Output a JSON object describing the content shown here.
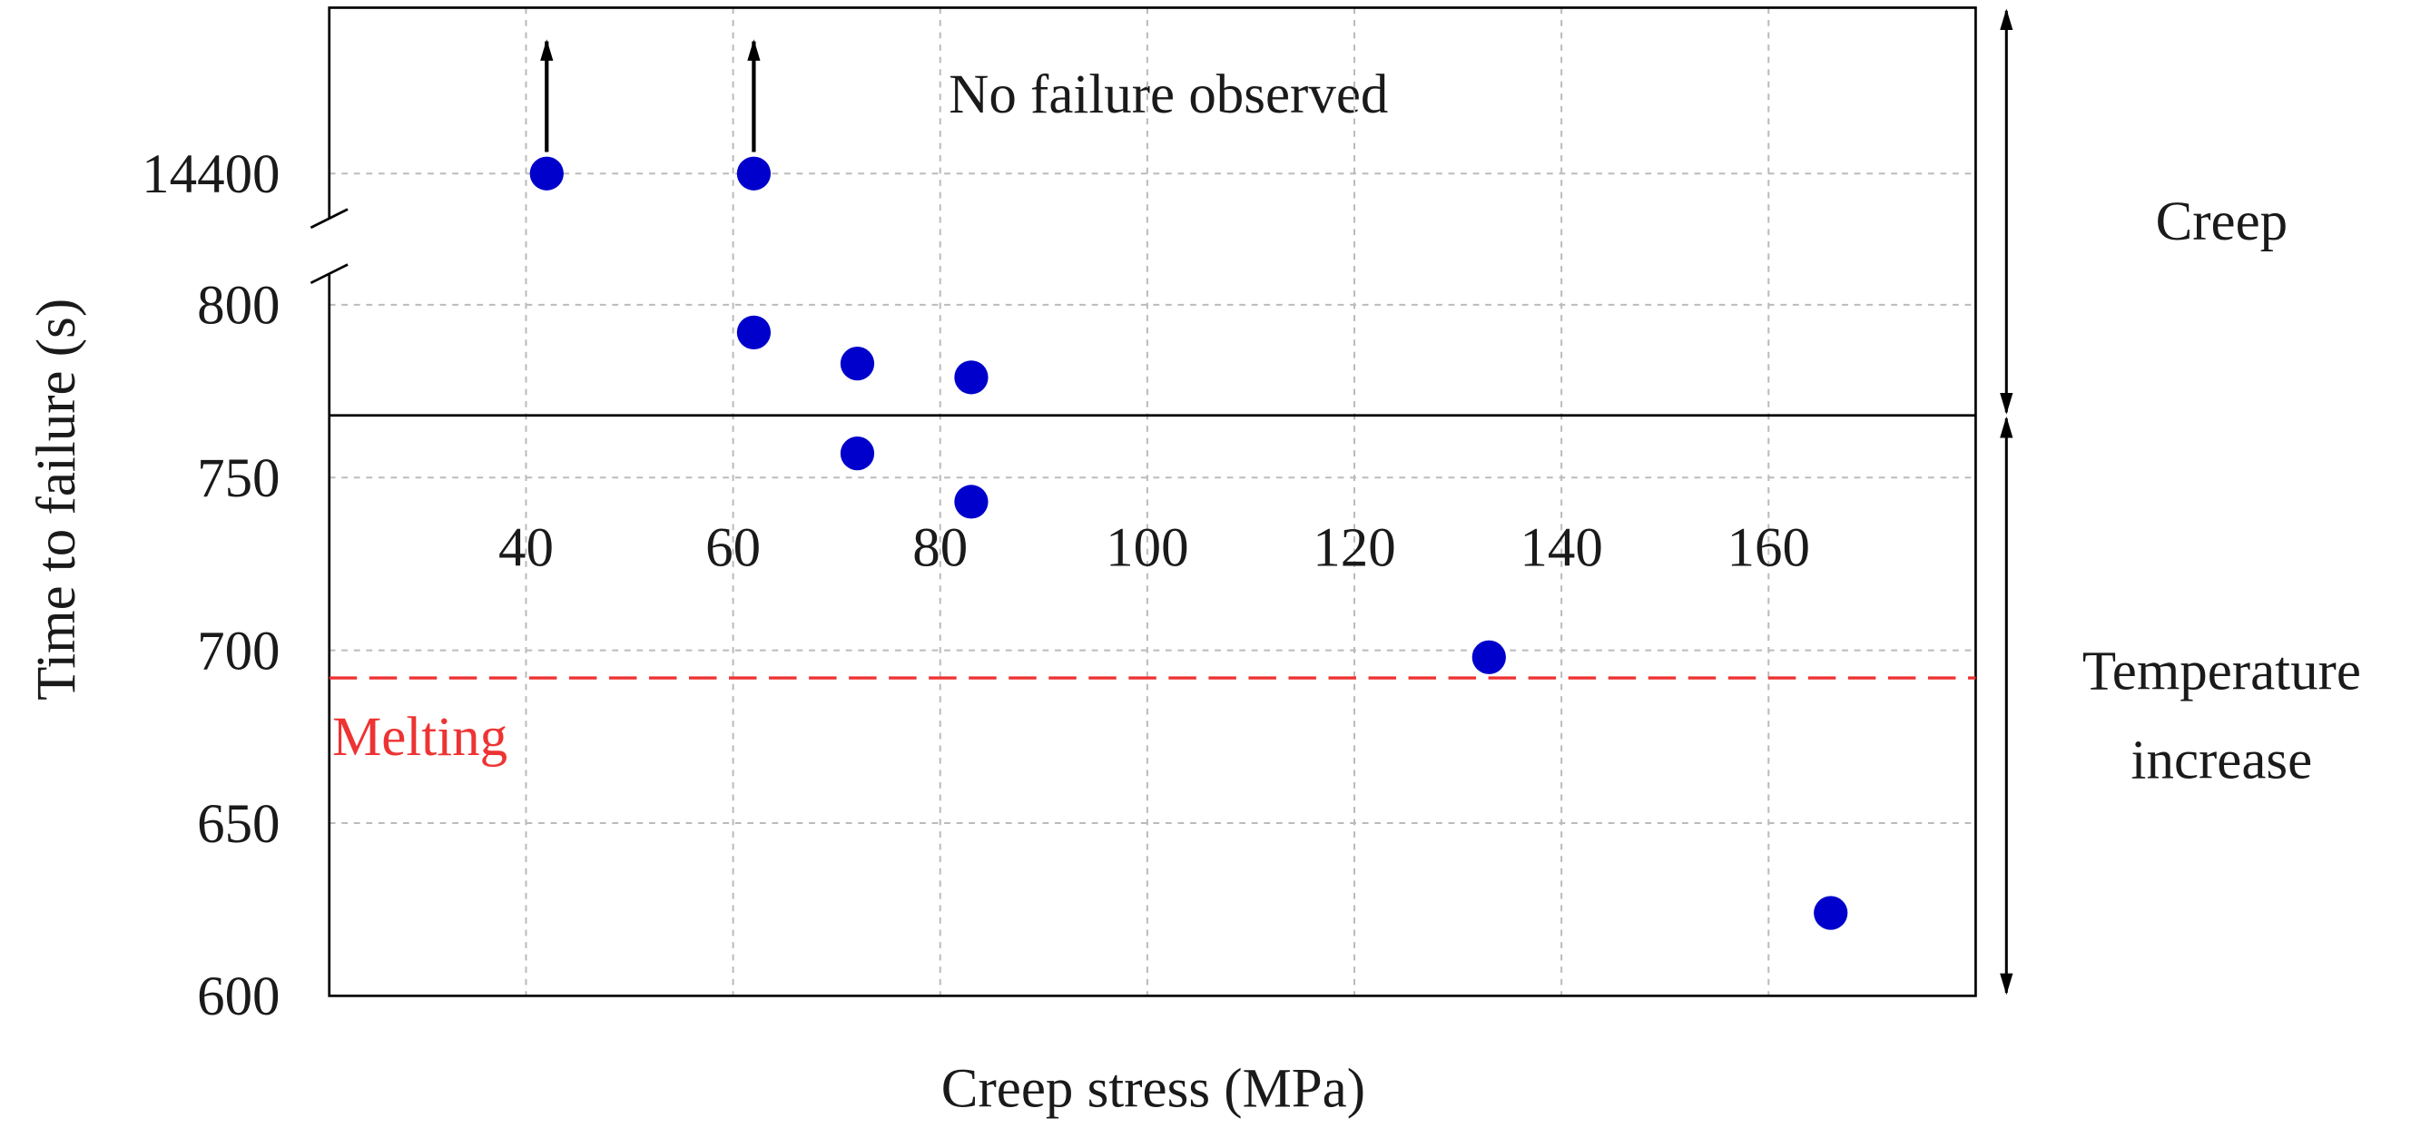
{
  "chart_data": {
    "type": "scatter",
    "x_label": "Creep stress (MPa)",
    "y_label": "Time to failure (s)",
    "xlim": [
      21,
      180
    ],
    "xticks": [
      40,
      60,
      80,
      100,
      120,
      140,
      160
    ],
    "y_segments": [
      {
        "ylim": [
          600,
          817
        ],
        "yticks": [
          600,
          650,
          700,
          750,
          800
        ]
      },
      {
        "ylim": [
          14379,
          14448
        ],
        "yticks": [
          14400
        ]
      }
    ],
    "grid": true,
    "color": "#0000cc",
    "x": [
      42,
      62,
      62,
      72,
      83,
      72,
      83,
      133,
      166
    ],
    "y": [
      14400,
      14400,
      792,
      783,
      779,
      757,
      743,
      698,
      624
    ],
    "censored": [
      true,
      true,
      false,
      false,
      false,
      false,
      false,
      false,
      false
    ],
    "censored_label": "No failure observed",
    "reference_line": {
      "label": "Melting",
      "value": 692,
      "color": "#ee3333"
    },
    "regions": [
      {
        "lines": [
          "Temperature",
          "increase"
        ],
        "from": 600,
        "to": 768
      },
      {
        "lines": [
          "Creep"
        ],
        "from": 768,
        "to": 14448
      }
    ]
  }
}
